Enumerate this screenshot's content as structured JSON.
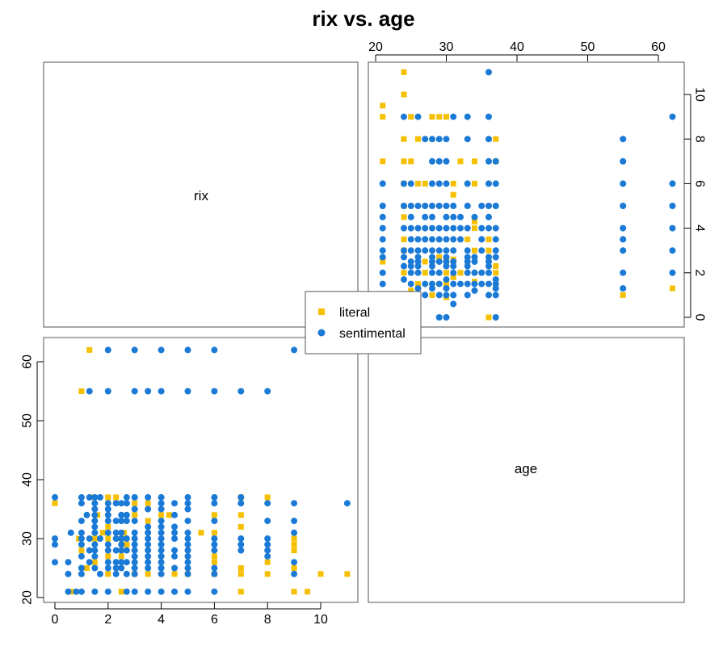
{
  "title": "rix vs. age",
  "colors": {
    "literal": "#f5c000",
    "sentimental": "#1a7ad6"
  },
  "chart_data": {
    "type": "scatter",
    "title": "rix vs. age",
    "variables": [
      "rix",
      "age"
    ],
    "axes": {
      "rix": {
        "range": [
          -0.5,
          11.5
        ],
        "ticks": [
          0,
          2,
          4,
          6,
          8,
          10
        ]
      },
      "age": {
        "range": [
          19.5,
          63.0
        ],
        "ticks": [
          20,
          30,
          40,
          50,
          60
        ]
      }
    },
    "legend": {
      "placement": "center",
      "entries": [
        "literal",
        "sentimental"
      ]
    },
    "series": [
      {
        "name": "literal",
        "marker": "square",
        "points": [
          [
            0,
            36
          ],
          [
            0.6,
            21
          ],
          [
            0.9,
            30
          ],
          [
            1,
            55
          ],
          [
            1,
            28
          ],
          [
            1.3,
            62
          ],
          [
            1.2,
            25
          ],
          [
            1.4,
            37
          ],
          [
            1.5,
            30
          ],
          [
            1.5,
            26
          ],
          [
            1.6,
            34
          ],
          [
            1.8,
            31
          ],
          [
            2,
            37
          ],
          [
            2,
            32
          ],
          [
            2,
            30
          ],
          [
            2,
            27
          ],
          [
            2,
            24
          ],
          [
            2.3,
            37
          ],
          [
            2.5,
            30
          ],
          [
            2.5,
            27
          ],
          [
            2.5,
            21
          ],
          [
            2.6,
            31
          ],
          [
            2.7,
            29
          ],
          [
            3,
            36
          ],
          [
            3,
            34
          ],
          [
            3,
            24
          ],
          [
            3.5,
            36
          ],
          [
            3.5,
            33
          ],
          [
            3.5,
            24
          ],
          [
            4,
            34
          ],
          [
            4.3,
            34
          ],
          [
            4.5,
            24
          ],
          [
            5,
            24
          ],
          [
            5.5,
            31
          ],
          [
            6,
            34
          ],
          [
            6,
            31
          ],
          [
            6,
            27
          ],
          [
            6,
            26
          ],
          [
            6,
            24
          ],
          [
            7,
            37
          ],
          [
            7,
            34
          ],
          [
            7,
            32
          ],
          [
            7,
            25
          ],
          [
            7,
            24
          ],
          [
            7,
            21
          ],
          [
            8,
            37
          ],
          [
            8,
            26
          ],
          [
            8,
            24
          ],
          [
            9,
            30
          ],
          [
            9,
            29
          ],
          [
            9,
            28
          ],
          [
            9,
            25
          ],
          [
            9,
            21
          ],
          [
            9.5,
            21
          ],
          [
            10,
            24
          ],
          [
            11,
            24
          ]
        ]
      },
      {
        "name": "sentimental",
        "marker": "circle",
        "points": [
          [
            0,
            37
          ],
          [
            0,
            30
          ],
          [
            0,
            29
          ],
          [
            0,
            26
          ],
          [
            0.5,
            26
          ],
          [
            0.5,
            24
          ],
          [
            0.5,
            21
          ],
          [
            0.6,
            31
          ],
          [
            0.8,
            21
          ],
          [
            1,
            37
          ],
          [
            1,
            36
          ],
          [
            1,
            33
          ],
          [
            1,
            31
          ],
          [
            1,
            30
          ],
          [
            1,
            29
          ],
          [
            1,
            27
          ],
          [
            1,
            25
          ],
          [
            1,
            24
          ],
          [
            1,
            21
          ],
          [
            1.2,
            34
          ],
          [
            1.3,
            55
          ],
          [
            1.3,
            37
          ],
          [
            1.3,
            30
          ],
          [
            1.3,
            28
          ],
          [
            1.3,
            26
          ],
          [
            1.5,
            37
          ],
          [
            1.5,
            36
          ],
          [
            1.5,
            35
          ],
          [
            1.5,
            34
          ],
          [
            1.5,
            33
          ],
          [
            1.5,
            32
          ],
          [
            1.5,
            31
          ],
          [
            1.5,
            29
          ],
          [
            1.5,
            28
          ],
          [
            1.5,
            27
          ],
          [
            1.5,
            25
          ],
          [
            1.5,
            21
          ],
          [
            1.7,
            37
          ],
          [
            1.7,
            30
          ],
          [
            1.7,
            24
          ],
          [
            2,
            62
          ],
          [
            2,
            55
          ],
          [
            2,
            36
          ],
          [
            2,
            35
          ],
          [
            2,
            34
          ],
          [
            2,
            33
          ],
          [
            2,
            31
          ],
          [
            2,
            29
          ],
          [
            2,
            28
          ],
          [
            2,
            26
          ],
          [
            2,
            25
          ],
          [
            2,
            21
          ],
          [
            2.3,
            36
          ],
          [
            2.3,
            33
          ],
          [
            2.3,
            31
          ],
          [
            2.3,
            30
          ],
          [
            2.3,
            28
          ],
          [
            2.3,
            26
          ],
          [
            2.3,
            25
          ],
          [
            2.3,
            24
          ],
          [
            2.5,
            36
          ],
          [
            2.5,
            34
          ],
          [
            2.5,
            33
          ],
          [
            2.5,
            31
          ],
          [
            2.5,
            30
          ],
          [
            2.5,
            29
          ],
          [
            2.5,
            28
          ],
          [
            2.5,
            26
          ],
          [
            2.5,
            25
          ],
          [
            2.7,
            37
          ],
          [
            2.7,
            36
          ],
          [
            2.7,
            34
          ],
          [
            2.7,
            33
          ],
          [
            2.7,
            30
          ],
          [
            2.7,
            28
          ],
          [
            2.7,
            26
          ],
          [
            2.7,
            24
          ],
          [
            2.7,
            21
          ],
          [
            3,
            62
          ],
          [
            3,
            55
          ],
          [
            3,
            37
          ],
          [
            3,
            35
          ],
          [
            3,
            33
          ],
          [
            3,
            31
          ],
          [
            3,
            30
          ],
          [
            3,
            29
          ],
          [
            3,
            28
          ],
          [
            3,
            27
          ],
          [
            3,
            26
          ],
          [
            3,
            25
          ],
          [
            3,
            24
          ],
          [
            3,
            21
          ],
          [
            3.5,
            55
          ],
          [
            3.5,
            37
          ],
          [
            3.5,
            35
          ],
          [
            3.5,
            32
          ],
          [
            3.5,
            31
          ],
          [
            3.5,
            30
          ],
          [
            3.5,
            29
          ],
          [
            3.5,
            28
          ],
          [
            3.5,
            27
          ],
          [
            3.5,
            26
          ],
          [
            3.5,
            25
          ],
          [
            3.5,
            21
          ],
          [
            4,
            62
          ],
          [
            4,
            55
          ],
          [
            4,
            37
          ],
          [
            4,
            36
          ],
          [
            4,
            35
          ],
          [
            4,
            33
          ],
          [
            4,
            32
          ],
          [
            4,
            31
          ],
          [
            4,
            30
          ],
          [
            4,
            29
          ],
          [
            4,
            28
          ],
          [
            4,
            27
          ],
          [
            4,
            26
          ],
          [
            4,
            25
          ],
          [
            4,
            24
          ],
          [
            4,
            21
          ],
          [
            4.5,
            36
          ],
          [
            4.5,
            34
          ],
          [
            4.5,
            32
          ],
          [
            4.5,
            31
          ],
          [
            4.5,
            30
          ],
          [
            4.5,
            28
          ],
          [
            4.5,
            27
          ],
          [
            4.5,
            25
          ],
          [
            4.5,
            21
          ],
          [
            5,
            62
          ],
          [
            5,
            55
          ],
          [
            5,
            37
          ],
          [
            5,
            36
          ],
          [
            5,
            35
          ],
          [
            5,
            33
          ],
          [
            5,
            31
          ],
          [
            5,
            30
          ],
          [
            5,
            29
          ],
          [
            5,
            28
          ],
          [
            5,
            27
          ],
          [
            5,
            26
          ],
          [
            5,
            25
          ],
          [
            5,
            24
          ],
          [
            5,
            21
          ],
          [
            6,
            62
          ],
          [
            6,
            55
          ],
          [
            6,
            37
          ],
          [
            6,
            36
          ],
          [
            6,
            33
          ],
          [
            6,
            30
          ],
          [
            6,
            29
          ],
          [
            6,
            28
          ],
          [
            6,
            25
          ],
          [
            6,
            24
          ],
          [
            6,
            21
          ],
          [
            7,
            55
          ],
          [
            7,
            37
          ],
          [
            7,
            36
          ],
          [
            7,
            30
          ],
          [
            7,
            29
          ],
          [
            7,
            28
          ],
          [
            8,
            55
          ],
          [
            8,
            36
          ],
          [
            8,
            33
          ],
          [
            8,
            30
          ],
          [
            8,
            29
          ],
          [
            8,
            28
          ],
          [
            8,
            27
          ],
          [
            9,
            62
          ],
          [
            9,
            36
          ],
          [
            9,
            33
          ],
          [
            9,
            31
          ],
          [
            9,
            26
          ],
          [
            9,
            24
          ],
          [
            11,
            36
          ]
        ]
      }
    ]
  },
  "panels": {
    "rix_label": "rix",
    "age_label": "age"
  },
  "legend": {
    "items": [
      {
        "label": "literal"
      },
      {
        "label": "sentimental"
      }
    ]
  }
}
